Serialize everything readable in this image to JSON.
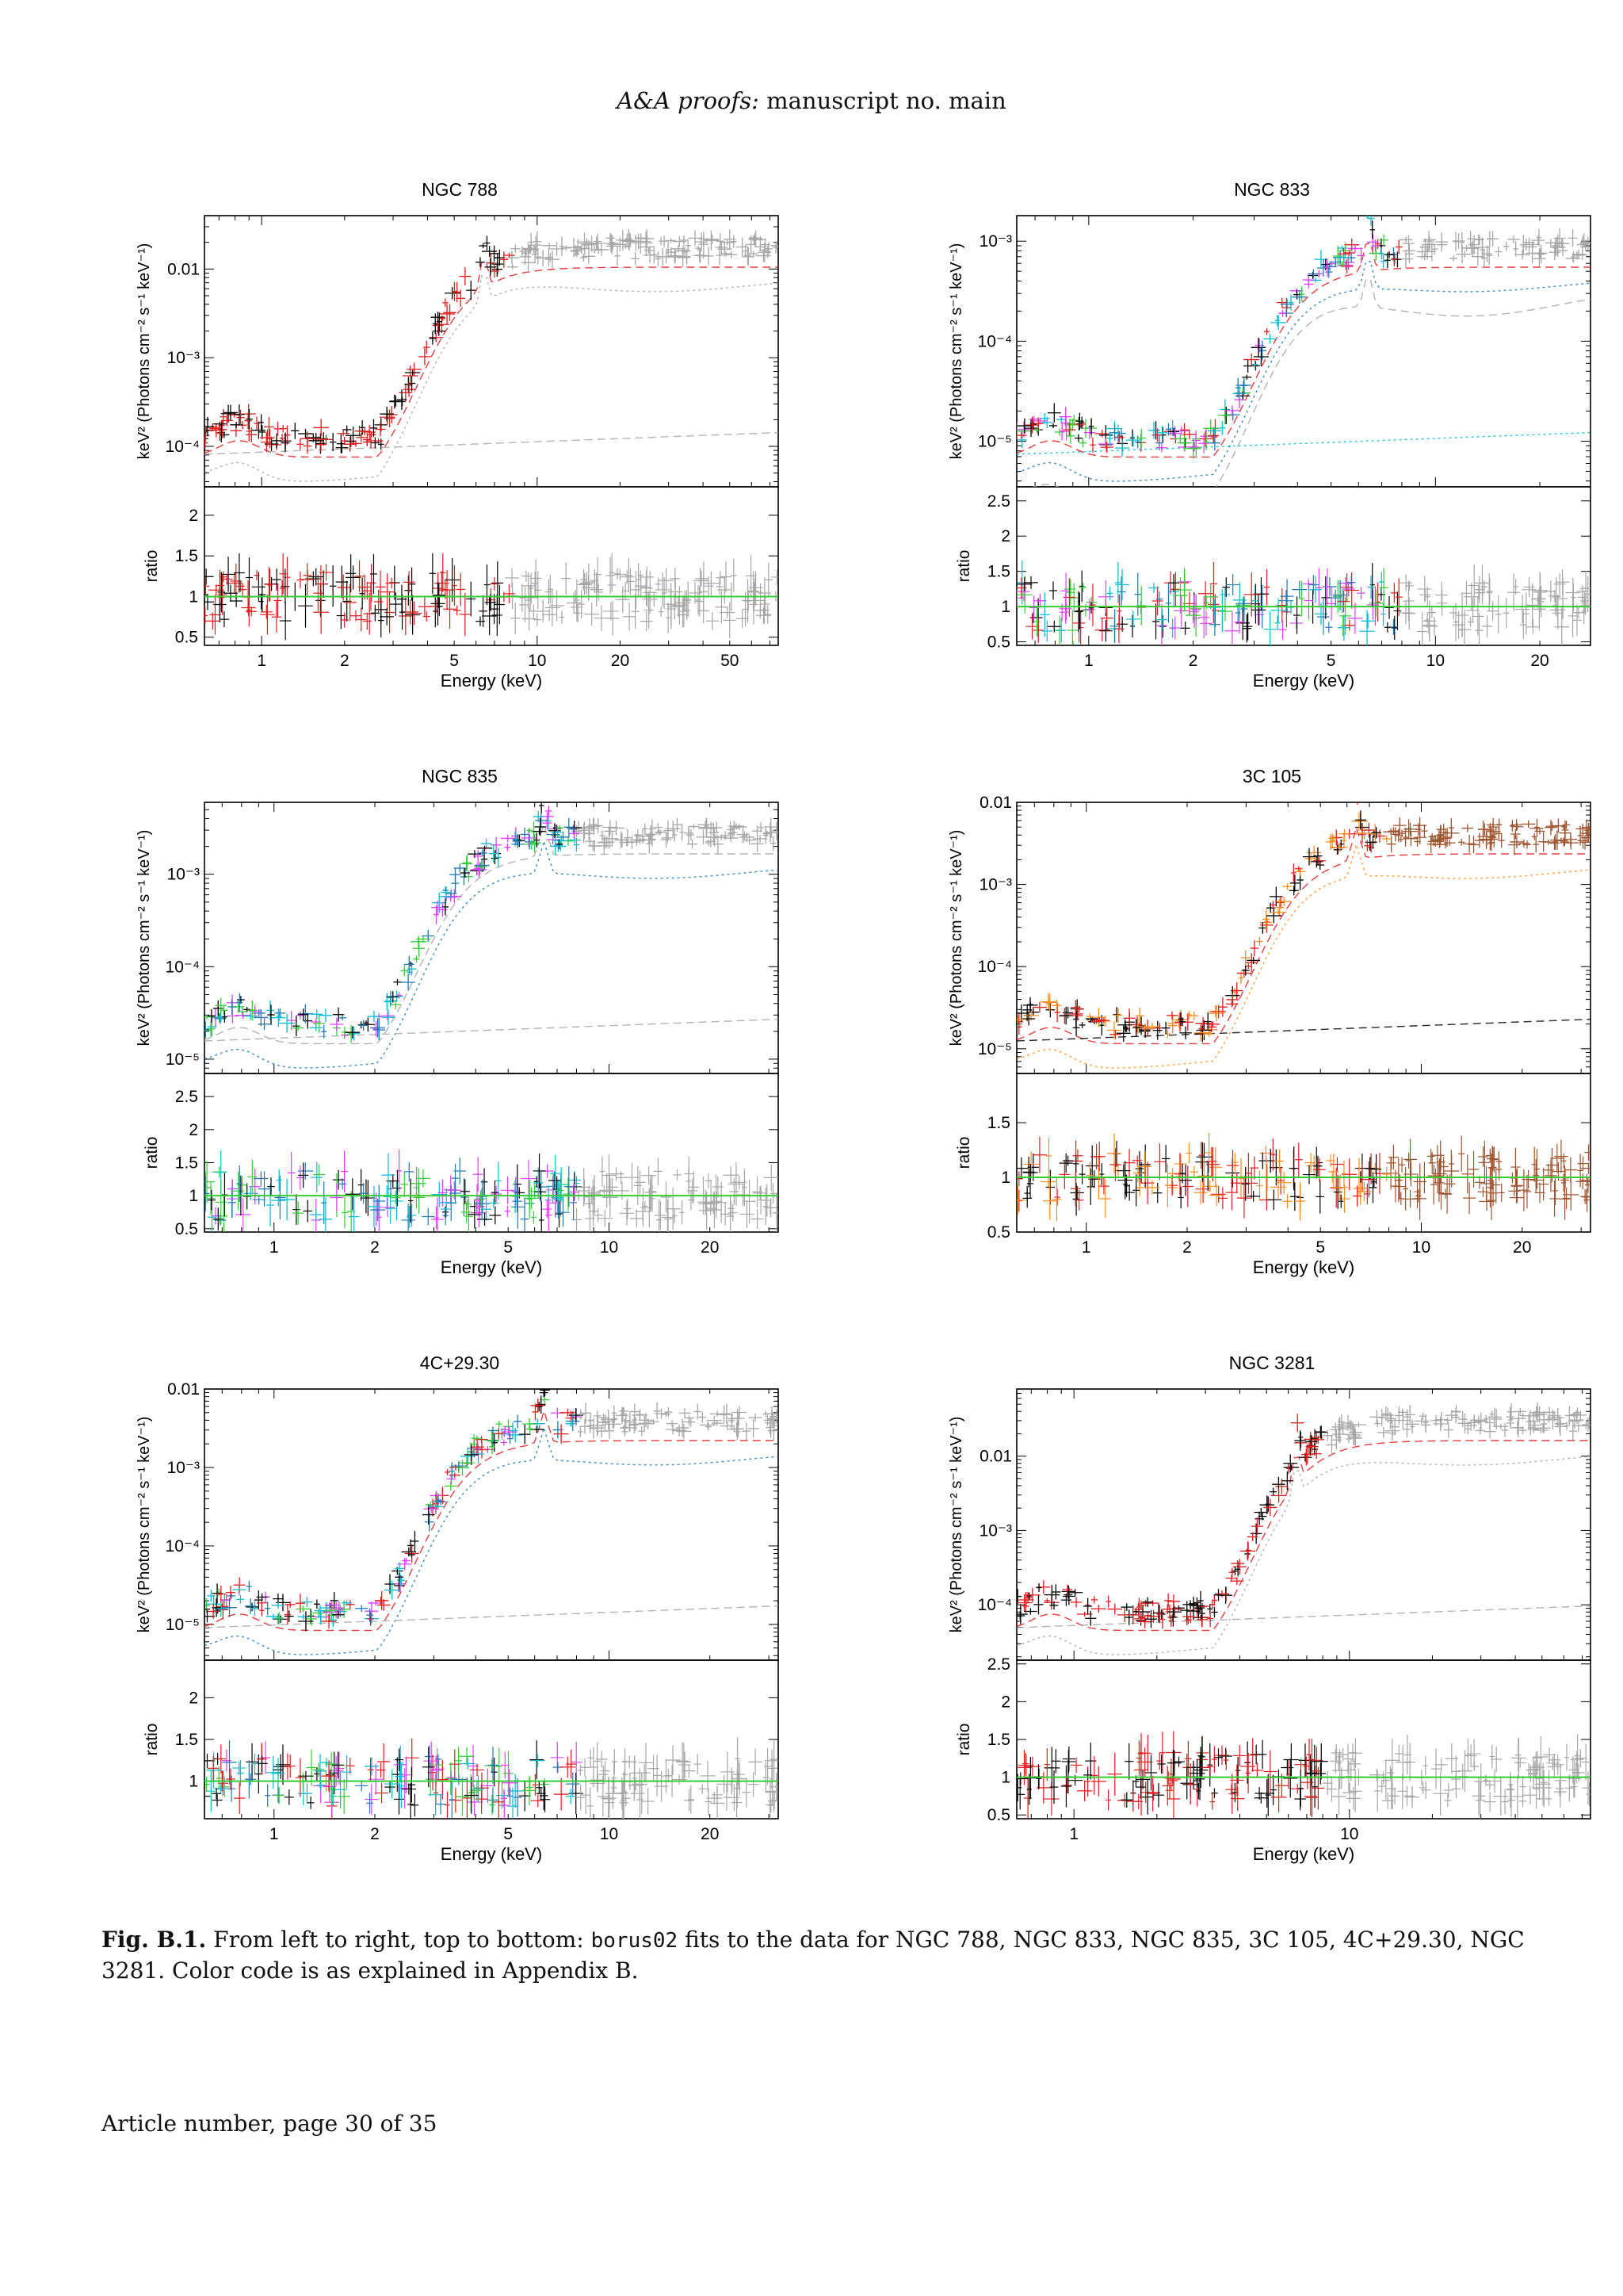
{
  "header": {
    "journal": "A&A proofs:",
    "manuscript": "manuscript no. main"
  },
  "panels": [
    {
      "title": "NGC 788",
      "y_label": "keV² (Photons cm⁻² s⁻¹ keV⁻¹)",
      "ratio_label": "ratio",
      "x_label": "Energy (keV)",
      "x_range": [
        0.62,
        75
      ],
      "x_ticks": [
        1,
        2,
        5,
        10,
        20,
        50
      ],
      "spec_range": [
        3.5e-05,
        0.04
      ],
      "spec_ticks": [
        {
          "v": 0.0001,
          "t": "10⁻⁴"
        },
        {
          "v": 0.001,
          "t": "10⁻³"
        },
        {
          "v": 0.01,
          "t": "0.01"
        }
      ],
      "ratio_range": [
        0.4,
        2.35
      ],
      "ratio_ticks": [
        0.5,
        1,
        1.5,
        2
      ],
      "series_colors": [
        "#e41a1c",
        "#000000",
        "#a6a6a6"
      ],
      "model_colors": [
        "#e41a1c",
        "#a6a6a6",
        "#a6a6a6"
      ]
    },
    {
      "title": "NGC 833",
      "y_label": "keV² (Photons cm⁻² s⁻¹ keV⁻¹)",
      "ratio_label": "ratio",
      "x_label": "Energy (keV)",
      "x_range": [
        0.62,
        28
      ],
      "x_ticks": [
        1,
        2,
        5,
        10,
        20
      ],
      "spec_range": [
        3.5e-06,
        0.0018
      ],
      "spec_ticks": [
        {
          "v": 1e-05,
          "t": "10⁻⁵"
        },
        {
          "v": 0.0001,
          "t": "10⁻⁴"
        },
        {
          "v": 0.001,
          "t": "10⁻³"
        }
      ],
      "ratio_range": [
        0.45,
        2.7
      ],
      "ratio_ticks": [
        0.5,
        1,
        1.5,
        2,
        2.5
      ],
      "series_colors": [
        "#000000",
        "#e41a1c",
        "#33cc33",
        "#e040fb",
        "#1f78b4",
        "#00bcd4",
        "#a6a6a6"
      ],
      "model_colors": [
        "#e41a1c",
        "#1f78b4",
        "#a6a6a6",
        "#00bcd4"
      ]
    },
    {
      "title": "NGC 835",
      "y_label": "keV² (Photons cm⁻² s⁻¹ keV⁻¹)",
      "ratio_label": "ratio",
      "x_label": "Energy (keV)",
      "x_range": [
        0.62,
        32
      ],
      "x_ticks": [
        1,
        2,
        5,
        10,
        20
      ],
      "spec_range": [
        7e-06,
        0.006
      ],
      "spec_ticks": [
        {
          "v": 1e-05,
          "t": "10⁻⁵"
        },
        {
          "v": 0.0001,
          "t": "10⁻⁴"
        },
        {
          "v": 0.001,
          "t": "10⁻³"
        }
      ],
      "ratio_range": [
        0.45,
        2.85
      ],
      "ratio_ticks": [
        0.5,
        1,
        1.5,
        2,
        2.5
      ],
      "series_colors": [
        "#000000",
        "#1f78b4",
        "#00bcd4",
        "#33cc33",
        "#e040fb",
        "#a6a6a6"
      ],
      "model_colors": [
        "#a6a6a6",
        "#1f78b4",
        "#a6a6a6"
      ]
    },
    {
      "title": "3C 105",
      "y_label": "keV² (Photons cm⁻² s⁻¹ keV⁻¹)",
      "ratio_label": "ratio",
      "x_label": "Energy (keV)",
      "x_range": [
        0.62,
        32
      ],
      "x_ticks": [
        1,
        2,
        5,
        10,
        20
      ],
      "spec_range": [
        5e-06,
        0.01
      ],
      "spec_ticks": [
        {
          "v": 1e-05,
          "t": "10⁻⁵"
        },
        {
          "v": 0.0001,
          "t": "10⁻⁴"
        },
        {
          "v": 0.001,
          "t": "10⁻³"
        },
        {
          "v": 0.01,
          "t": "0.01"
        }
      ],
      "ratio_range": [
        0.5,
        1.95
      ],
      "ratio_ticks": [
        0.5,
        1,
        1.5
      ],
      "series_colors": [
        "#e41a1c",
        "#000000",
        "#ff8c1a",
        "#a0522d"
      ],
      "model_colors": [
        "#e41a1c",
        "#ff8c1a",
        "#000000"
      ]
    },
    {
      "title": "4C+29.30",
      "y_label": "keV² (Photons cm⁻² s⁻¹ keV⁻¹)",
      "ratio_label": "ratio",
      "x_label": "Energy (keV)",
      "x_range": [
        0.62,
        32
      ],
      "x_ticks": [
        1,
        2,
        5,
        10,
        20
      ],
      "spec_range": [
        3.5e-06,
        0.01
      ],
      "spec_ticks": [
        {
          "v": 1e-05,
          "t": "10⁻⁵"
        },
        {
          "v": 0.0001,
          "t": "10⁻⁴"
        },
        {
          "v": 0.001,
          "t": "10⁻³"
        },
        {
          "v": 0.01,
          "t": "0.01"
        }
      ],
      "ratio_range": [
        0.55,
        2.45
      ],
      "ratio_ticks": [
        1,
        1.5,
        2
      ],
      "series_colors": [
        "#e41a1c",
        "#00bcd4",
        "#1f78b4",
        "#e040fb",
        "#33cc33",
        "#000000",
        "#a6a6a6"
      ],
      "model_colors": [
        "#e41a1c",
        "#1f78b4",
        "#a6a6a6"
      ]
    },
    {
      "title": "NGC 3281",
      "y_label": "keV² (Photons cm⁻² s⁻¹ keV⁻¹)",
      "ratio_label": "ratio",
      "x_label": "Energy (keV)",
      "x_range": [
        0.62,
        75
      ],
      "x_ticks": [
        1,
        10
      ],
      "spec_range": [
        1.8e-05,
        0.08
      ],
      "spec_ticks": [
        {
          "v": 0.0001,
          "t": "10⁻⁴"
        },
        {
          "v": 0.001,
          "t": "10⁻³"
        },
        {
          "v": 0.01,
          "t": "0.01"
        }
      ],
      "ratio_range": [
        0.45,
        2.55
      ],
      "ratio_ticks": [
        0.5,
        1,
        1.5,
        2,
        2.5
      ],
      "series_colors": [
        "#000000",
        "#e41a1c",
        "#a6a6a6"
      ],
      "model_colors": [
        "#e41a1c",
        "#a6a6a6",
        "#a6a6a6"
      ]
    }
  ],
  "caption": {
    "label": "Fig. B.1.",
    "text_before": " From left to right, top to bottom: ",
    "model": "borus02",
    "text_after": " fits to the data for NGC 788, NGC 833, NGC 835, 3C 105, 4C+29.30, NGC 3281. Color code is as explained in Appendix B."
  },
  "footer": {
    "text": "Article number, page 30 of 35"
  }
}
